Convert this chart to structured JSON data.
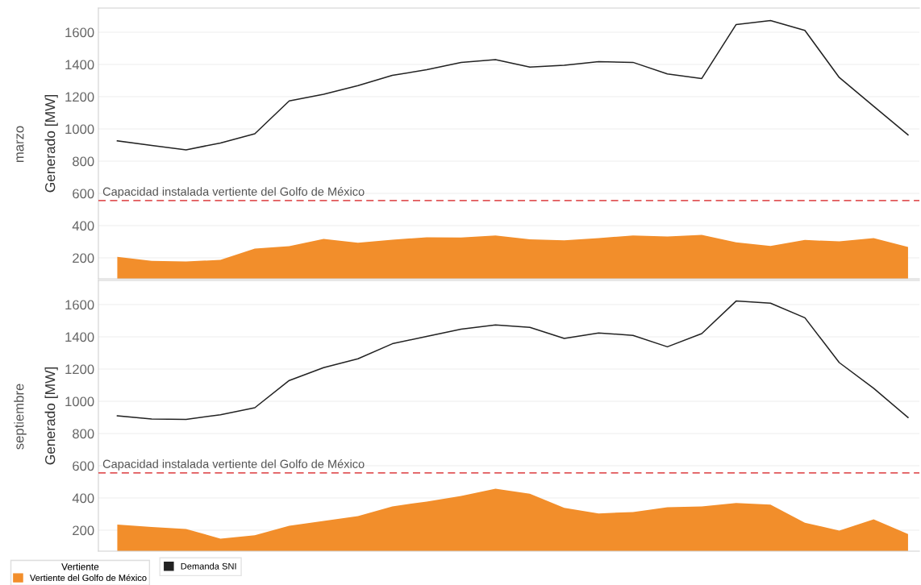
{
  "chart_data": [
    {
      "type": "area",
      "title": "marzo",
      "ylabel": "Generado [MW]",
      "categories": [
        null,
        null,
        null,
        null,
        null,
        null,
        null,
        null,
        null,
        null,
        null,
        null,
        null,
        null,
        null,
        null,
        null,
        null,
        null,
        null,
        null,
        null,
        null,
        null
      ],
      "series": [
        {
          "name": "Vertiente del Golfo de México",
          "color": "#f28e2b",
          "values": [
            206,
            181,
            178,
            187,
            257,
            272,
            317,
            294,
            313,
            328,
            326,
            339,
            315,
            309,
            322,
            339,
            333,
            343,
            296,
            274,
            311,
            302,
            322,
            267
          ]
        },
        {
          "name": "Demanda SNI",
          "type": "line",
          "color": "#222222",
          "values": [
            926,
            898,
            870,
            913,
            970,
            1174,
            1215,
            1269,
            1333,
            1367,
            1413,
            1430,
            1384,
            1395,
            1417,
            1413,
            1341,
            1313,
            1648,
            1672,
            1611,
            1319,
            1141,
            963
          ]
        }
      ],
      "ylim": [
        70,
        1750
      ],
      "yticks": [
        200,
        400,
        600,
        800,
        1000,
        1200,
        1400,
        1600
      ],
      "grid": "y",
      "tick_labels": "y",
      "legend": "bottom left",
      "legend_title": "Vertiente",
      "ref_lines": [
        {
          "axis": "y",
          "value": 556,
          "label": "Capacidad instalada vertiente del Golfo de México",
          "color": "#e15759",
          "line_style": "dashed"
        }
      ]
    },
    {
      "type": "area",
      "title": "septiembre",
      "ylabel": "Generado [MW]",
      "categories": [
        null,
        null,
        null,
        null,
        null,
        null,
        null,
        null,
        null,
        null,
        null,
        null,
        null,
        null,
        null,
        null,
        null,
        null,
        null,
        null,
        null,
        null,
        null,
        null
      ],
      "series": [
        {
          "color": "#f28e2b",
          "values": [
            235,
            220,
            207,
            148,
            169,
            228,
            257,
            287,
            348,
            378,
            413,
            458,
            426,
            339,
            304,
            313,
            343,
            348,
            369,
            359,
            246,
            198,
            267,
            176
          ]
        },
        {
          "type": "line",
          "color": "#222222",
          "values": [
            910,
            890,
            888,
            916,
            960,
            1129,
            1209,
            1264,
            1357,
            1403,
            1447,
            1474,
            1459,
            1390,
            1424,
            1409,
            1338,
            1420,
            1622,
            1609,
            1518,
            1240,
            1081,
            899
          ]
        }
      ],
      "ylim": [
        70,
        1750
      ],
      "yticks": [
        200,
        400,
        600,
        800,
        1000,
        1200,
        1400,
        1600
      ],
      "grid": "y",
      "tick_labels": "y",
      "ref_lines": [
        {
          "axis": "y",
          "value": 556,
          "label": "Capacidad instalada vertiente del Golfo de México",
          "color": "#e15759",
          "line_style": "dashed"
        }
      ]
    }
  ]
}
